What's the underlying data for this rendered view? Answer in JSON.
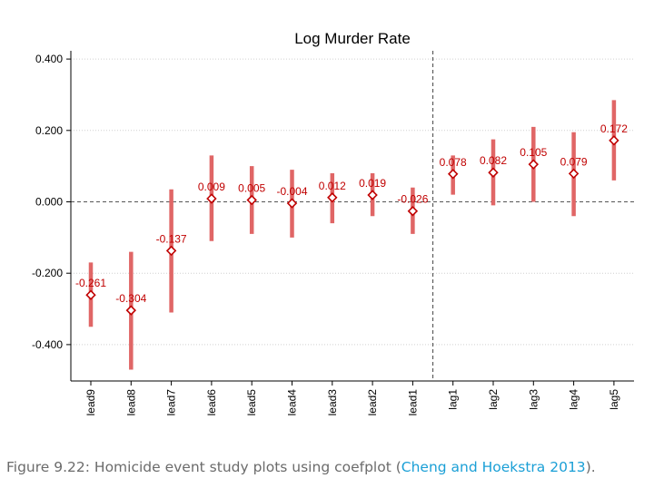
{
  "chart_data": {
    "type": "scatter",
    "title": "Log Murder Rate",
    "categories": [
      "lead9",
      "lead8",
      "lead7",
      "lead6",
      "lead5",
      "lead4",
      "lead3",
      "lead2",
      "lead1",
      "lag1",
      "lag2",
      "lag3",
      "lag4",
      "lag5"
    ],
    "values": [
      -0.261,
      -0.304,
      -0.137,
      0.009,
      0.005,
      -0.004,
      0.012,
      0.019,
      -0.026,
      0.078,
      0.082,
      0.105,
      0.079,
      0.172
    ],
    "labels": [
      "-0.261",
      "-0.304",
      "-0.137",
      "0.009",
      "0.005",
      "-0.004",
      "0.012",
      "0.019",
      "-0.026",
      "0.078",
      "0.082",
      "0.105",
      "0.079",
      "0.172"
    ],
    "ci_low": [
      -0.35,
      -0.47,
      -0.31,
      -0.11,
      -0.09,
      -0.1,
      -0.06,
      -0.04,
      -0.09,
      0.02,
      -0.01,
      0.0,
      -0.04,
      0.06
    ],
    "ci_high": [
      -0.17,
      -0.14,
      0.035,
      0.13,
      0.1,
      0.09,
      0.08,
      0.08,
      0.04,
      0.13,
      0.175,
      0.21,
      0.195,
      0.285
    ],
    "yticks": [
      0.4,
      0.2,
      0.0,
      -0.2,
      -0.4
    ],
    "ytick_labels": [
      "0.400",
      "0.200",
      "0.000",
      "-0.200",
      "-0.400"
    ],
    "ylim": [
      -0.5,
      0.4
    ],
    "reference_line_y": 0,
    "vertical_reference_between": [
      "lead1",
      "lag1"
    ],
    "grid": true,
    "colors": {
      "marker": "#c00000",
      "ci": "#e06666",
      "label": "#c00000"
    }
  },
  "caption": {
    "prefix": "Figure 9.22: Homicide event study plots using coefplot (",
    "link": "Cheng and Hoekstra 2013",
    "suffix": ")."
  }
}
